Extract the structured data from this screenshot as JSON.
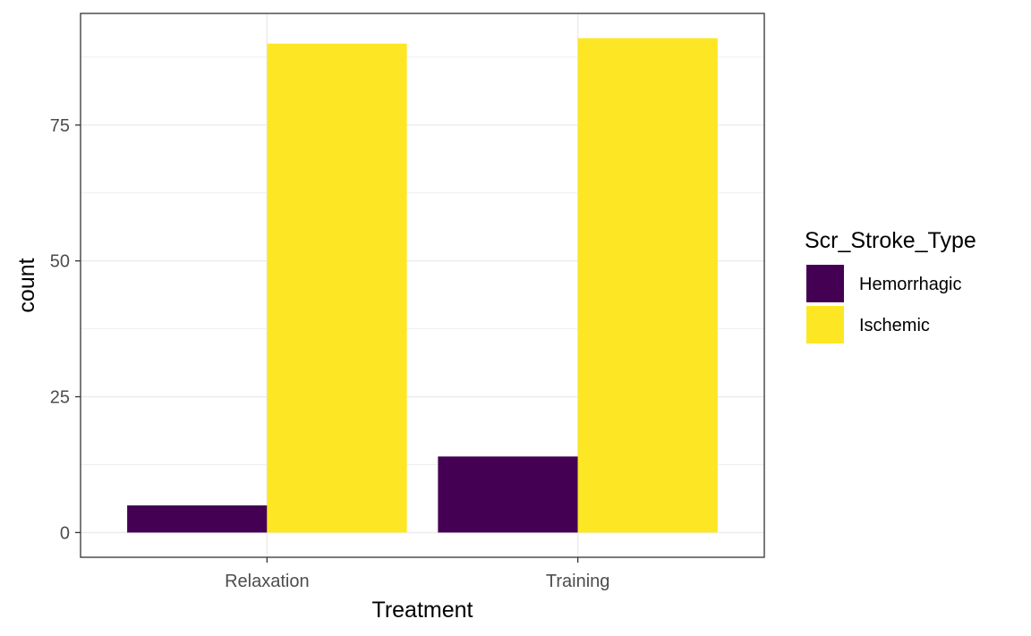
{
  "chart_data": {
    "type": "bar",
    "position": "dodge",
    "categories": [
      "Relaxation",
      "Training"
    ],
    "series": [
      {
        "name": "Hemorrhagic",
        "values": [
          5,
          14
        ],
        "color": "#440154"
      },
      {
        "name": "Ischemic",
        "values": [
          90,
          91
        ],
        "color": "#FDE725"
      }
    ],
    "xlabel": "Treatment",
    "ylabel": "count",
    "legend_title": "Scr_Stroke_Type",
    "legend_position": "right",
    "yticks": [
      0,
      25,
      50,
      75
    ],
    "ylim": [
      -4.55,
      95.55
    ],
    "grid": true,
    "theme": "bw"
  }
}
